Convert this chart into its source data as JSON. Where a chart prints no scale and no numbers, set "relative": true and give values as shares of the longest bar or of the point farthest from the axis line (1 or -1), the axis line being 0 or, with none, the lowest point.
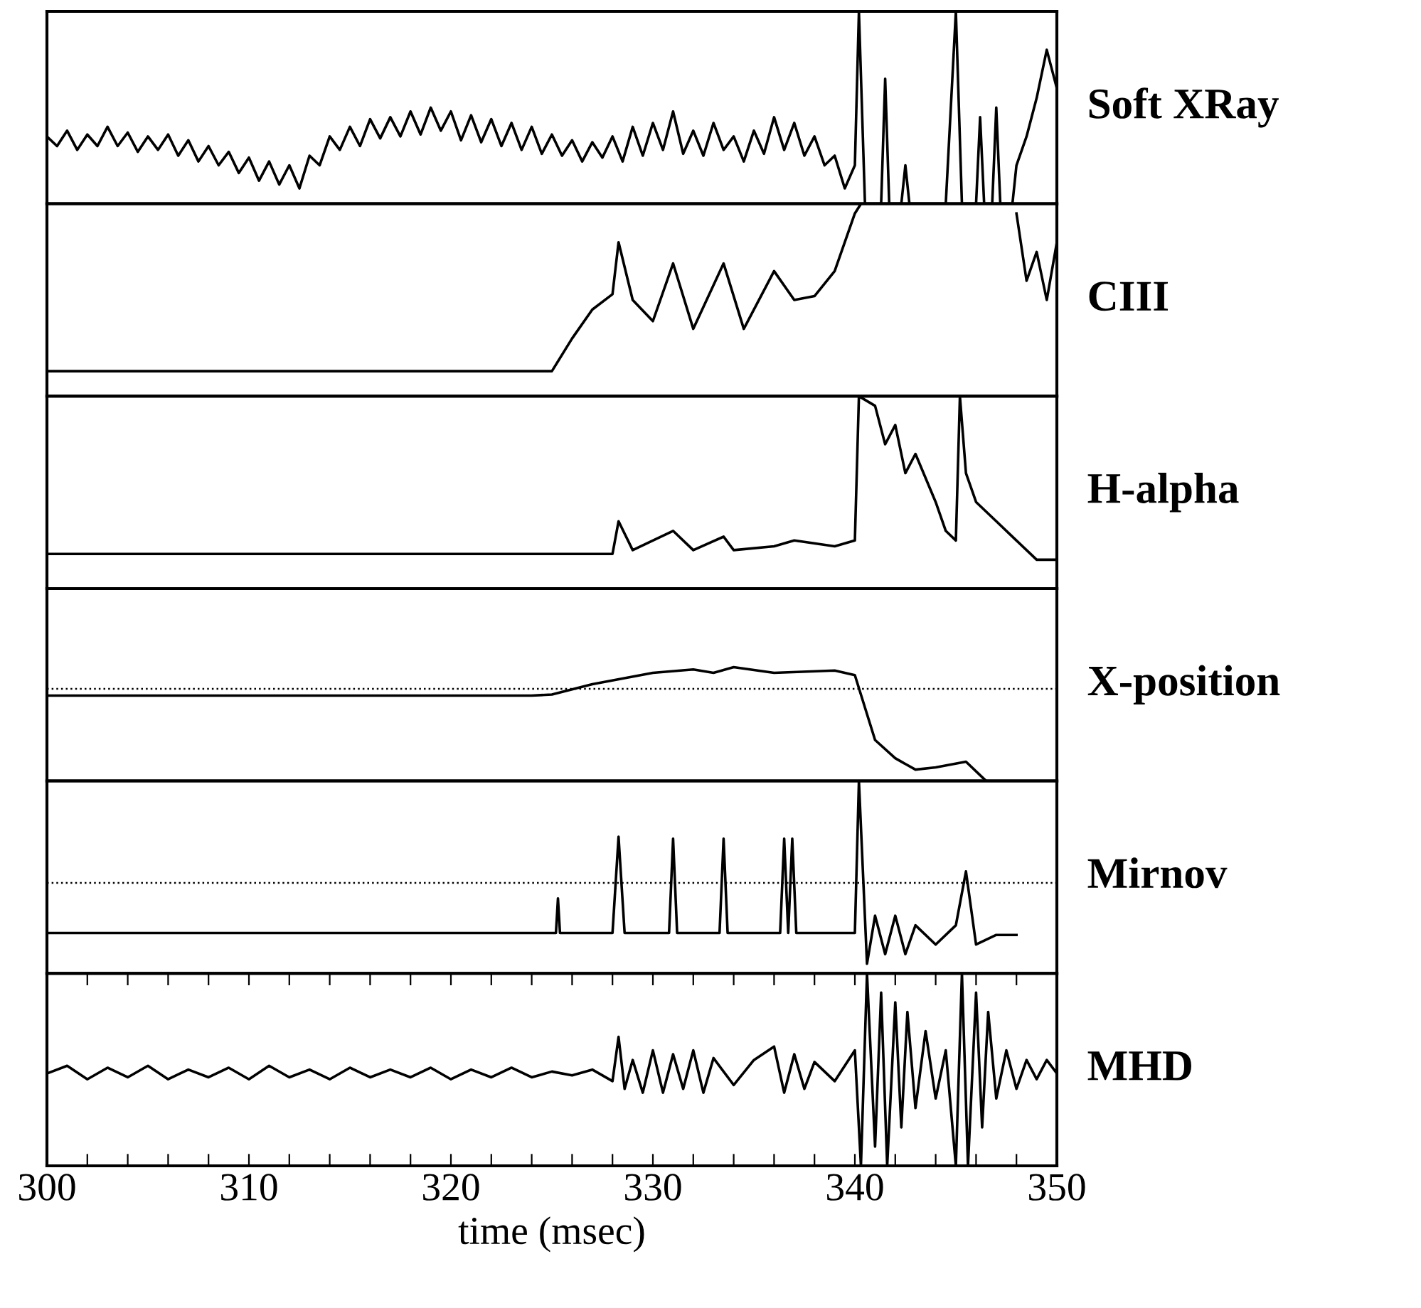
{
  "chart_data": [
    {
      "type": "line",
      "relative": true,
      "ylabel": "Soft XRay",
      "xlim": [
        300,
        350
      ],
      "tick_labels": false,
      "x": [
        300,
        300.5,
        301,
        301.5,
        302,
        302.5,
        303,
        303.5,
        304,
        304.5,
        305,
        305.5,
        306,
        306.5,
        307,
        307.5,
        308,
        308.5,
        309,
        309.5,
        310,
        310.5,
        311,
        311.5,
        312,
        312.5,
        313,
        313.5,
        314,
        314.5,
        315,
        315.5,
        316,
        316.5,
        317,
        317.5,
        318,
        318.5,
        319,
        319.5,
        320,
        320.5,
        321,
        321.5,
        322,
        322.5,
        323,
        323.5,
        324,
        324.5,
        325,
        325.5,
        326,
        326.5,
        327,
        327.5,
        328,
        328.5,
        329,
        329.5,
        330,
        330.5,
        331,
        331.5,
        332,
        332.5,
        333,
        333.5,
        334,
        334.5,
        335,
        335.5,
        336,
        336.5,
        337,
        337.5,
        338,
        338.5,
        339,
        339.5,
        340,
        340.2,
        340.5,
        341.3,
        341.5,
        341.7,
        342.3,
        342.5,
        342.7,
        344.5,
        345,
        345.3,
        346,
        346.2,
        346.4,
        346.8,
        347,
        347.2,
        347.8,
        348,
        348.5,
        349,
        349.5,
        350
      ],
      "series": [
        {
          "color": "#000000",
          "values": [
            0.35,
            0.3,
            0.38,
            0.28,
            0.36,
            0.3,
            0.4,
            0.3,
            0.37,
            0.27,
            0.35,
            0.28,
            0.36,
            0.25,
            0.33,
            0.22,
            0.3,
            0.2,
            0.27,
            0.16,
            0.24,
            0.12,
            0.22,
            0.1,
            0.2,
            0.08,
            0.25,
            0.2,
            0.35,
            0.28,
            0.4,
            0.3,
            0.44,
            0.34,
            0.45,
            0.35,
            0.48,
            0.36,
            0.5,
            0.38,
            0.48,
            0.33,
            0.46,
            0.32,
            0.44,
            0.3,
            0.42,
            0.28,
            0.4,
            0.26,
            0.36,
            0.25,
            0.33,
            0.22,
            0.32,
            0.24,
            0.35,
            0.22,
            0.4,
            0.25,
            0.42,
            0.28,
            0.48,
            0.26,
            0.38,
            0.25,
            0.42,
            0.28,
            0.35,
            0.22,
            0.38,
            0.26,
            0.45,
            0.28,
            0.42,
            0.25,
            0.35,
            0.2,
            0.25,
            0.08,
            0.2,
            1,
            0,
            0,
            0.65,
            0,
            0,
            0.2,
            0,
            0,
            1,
            0,
            0,
            0.45,
            0,
            0,
            0.5,
            0,
            0,
            0.2,
            0.35,
            0.55,
            0.8,
            0.6
          ]
        }
      ]
    },
    {
      "type": "line",
      "relative": true,
      "ylabel": "CIII",
      "xlim": [
        300,
        350
      ],
      "tick_labels": false,
      "x": [
        300,
        325,
        326,
        327,
        328,
        328.3,
        329,
        330,
        331,
        332,
        333.5,
        334.5,
        336,
        337,
        338,
        339,
        340,
        340.3,
        340.5,
        348,
        348.5,
        349,
        349.5,
        350
      ],
      "series": [
        {
          "color": "#000000",
          "values": [
            0.13,
            0.13,
            0.3,
            0.45,
            0.53,
            0.8,
            0.5,
            0.39,
            0.69,
            0.35,
            0.69,
            0.35,
            0.65,
            0.5,
            0.52,
            0.65,
            0.95,
            1,
            null,
            0.95,
            0.6,
            0.75,
            0.5,
            0.8
          ]
        }
      ]
    },
    {
      "type": "line",
      "relative": true,
      "ylabel": "H-alpha",
      "xlim": [
        300,
        350
      ],
      "tick_labels": false,
      "x": [
        300,
        328,
        328.3,
        329,
        331,
        332,
        333.5,
        334,
        336,
        337,
        339,
        340,
        340.2,
        341,
        341.5,
        342,
        342.5,
        343,
        344,
        344.5,
        345,
        345.2,
        345.5,
        346,
        347,
        348,
        349,
        350
      ],
      "series": [
        {
          "color": "#000000",
          "values": [
            0.18,
            0.18,
            0.35,
            0.2,
            0.3,
            0.2,
            0.27,
            0.2,
            0.22,
            0.25,
            0.22,
            0.25,
            1,
            0.95,
            0.75,
            0.85,
            0.6,
            0.7,
            0.45,
            0.3,
            0.25,
            1,
            0.6,
            0.45,
            0.35,
            0.25,
            0.15,
            0.15
          ]
        }
      ]
    },
    {
      "type": "line",
      "relative": true,
      "ylabel": "X-position",
      "xlim": [
        300,
        350
      ],
      "tick_labels": false,
      "ref_lines": [
        {
          "axis": "y",
          "value": 0.81,
          "line_style": "dotted"
        }
      ],
      "x": [
        300,
        324,
        325,
        327,
        330,
        332,
        333,
        334,
        336,
        339,
        340,
        341,
        342,
        343,
        344,
        345.5,
        346.5
      ],
      "series": [
        {
          "color": "#000000",
          "values": [
            0.75,
            0.75,
            0.76,
            0.85,
            0.95,
            0.98,
            0.95,
            1,
            0.95,
            0.97,
            0.93,
            0.36,
            0.2,
            0.1,
            0.12,
            0.17,
            0
          ]
        }
      ]
    },
    {
      "type": "line",
      "relative": true,
      "ylabel": "Mirnov",
      "xlim": [
        300,
        350
      ],
      "tick_labels": false,
      "ref_lines": [
        {
          "axis": "y",
          "value": 0.47,
          "line_style": "dotted"
        }
      ],
      "x": [
        300,
        325.2,
        325.3,
        325.4,
        328,
        328.3,
        328.6,
        330.8,
        331,
        331.2,
        333.3,
        333.5,
        333.7,
        336.3,
        336.5,
        336.7,
        336.9,
        337.1,
        337.3,
        340,
        340.2,
        340.6,
        341,
        341.5,
        342,
        342.5,
        343,
        344,
        345,
        345.5,
        346,
        347,
        348
      ],
      "series": [
        {
          "color": "#000000",
          "values": [
            0.21,
            0.21,
            0.39,
            0.21,
            0.21,
            0.71,
            0.21,
            0.21,
            0.7,
            0.21,
            0.21,
            0.7,
            0.21,
            0.21,
            0.7,
            0.21,
            0.7,
            0.21,
            0.21,
            0.21,
            1,
            0.05,
            0.3,
            0.1,
            0.3,
            0.1,
            0.25,
            0.15,
            0.25,
            0.53,
            0.15,
            0.2,
            0.2
          ]
        }
      ]
    },
    {
      "type": "line",
      "relative": true,
      "ylabel": "MHD",
      "xlim": [
        300,
        350
      ],
      "xlabel": "time (msec)",
      "tick_labels": "x",
      "xticks": [
        300,
        {
          "value": 302,
          "label": null
        },
        {
          "value": 304,
          "label": null
        },
        {
          "value": 306,
          "label": null
        },
        {
          "value": 308,
          "label": null
        },
        310,
        {
          "value": 312,
          "label": null
        },
        {
          "value": 314,
          "label": null
        },
        {
          "value": 316,
          "label": null
        },
        {
          "value": 318,
          "label": null
        },
        320,
        {
          "value": 322,
          "label": null
        },
        {
          "value": 324,
          "label": null
        },
        {
          "value": 326,
          "label": null
        },
        {
          "value": 328,
          "label": null
        },
        330,
        {
          "value": 332,
          "label": null
        },
        {
          "value": 334,
          "label": null
        },
        {
          "value": 336,
          "label": null
        },
        {
          "value": 338,
          "label": null
        },
        340,
        {
          "value": 342,
          "label": null
        },
        {
          "value": 344,
          "label": null
        },
        {
          "value": 346,
          "label": null
        },
        {
          "value": 348,
          "label": null
        },
        350
      ],
      "x": [
        300,
        301,
        302,
        303,
        304,
        305,
        306,
        307,
        308,
        309,
        310,
        311,
        312,
        313,
        314,
        315,
        316,
        317,
        318,
        319,
        320,
        321,
        322,
        323,
        324,
        325,
        326,
        327,
        328,
        328.3,
        328.6,
        329,
        329.5,
        330,
        330.5,
        331,
        331.5,
        332,
        332.5,
        333,
        334,
        335,
        336,
        336.5,
        337,
        337.5,
        338,
        339,
        340,
        340.3,
        340.6,
        341,
        341.3,
        341.6,
        342,
        342.3,
        342.6,
        343,
        343.5,
        344,
        344.5,
        345,
        345.3,
        345.6,
        346,
        346.3,
        346.6,
        347,
        347.5,
        348,
        348.5,
        349,
        349.5,
        350
      ],
      "series": [
        {
          "color": "#000000",
          "values": [
            0.48,
            0.52,
            0.45,
            0.51,
            0.46,
            0.52,
            0.45,
            0.5,
            0.46,
            0.51,
            0.45,
            0.52,
            0.46,
            0.5,
            0.45,
            0.51,
            0.46,
            0.5,
            0.46,
            0.51,
            0.45,
            0.5,
            0.46,
            0.51,
            0.46,
            0.49,
            0.47,
            0.5,
            0.44,
            0.67,
            0.4,
            0.55,
            0.38,
            0.6,
            0.38,
            0.58,
            0.4,
            0.6,
            0.38,
            0.56,
            0.42,
            0.55,
            0.62,
            0.38,
            0.58,
            0.4,
            0.54,
            0.44,
            0.6,
            0,
            1,
            0.1,
            0.9,
            0,
            0.85,
            0.2,
            0.8,
            0.3,
            0.7,
            0.35,
            0.6,
            0,
            1,
            0,
            0.9,
            0.2,
            0.8,
            0.35,
            0.6,
            0.4,
            0.55,
            0.45,
            0.55,
            0.48
          ]
        }
      ]
    }
  ]
}
